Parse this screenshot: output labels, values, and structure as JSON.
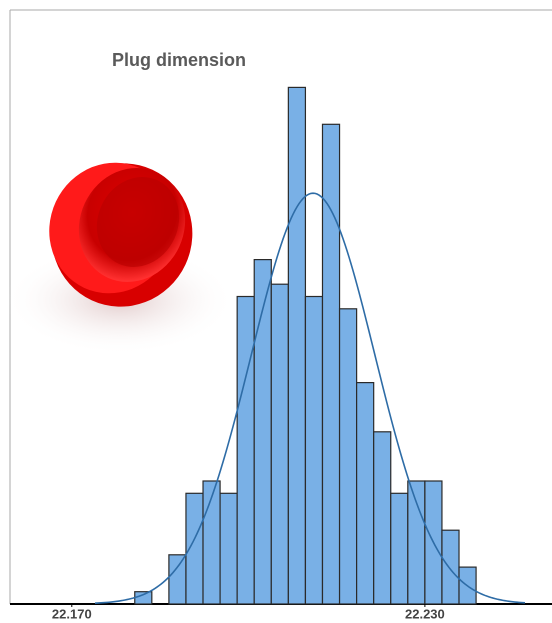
{
  "chart_data": {
    "type": "histogram",
    "title": "Plug dimension",
    "bins": [
      22.1807,
      22.1836,
      22.1865,
      22.1894,
      22.1923,
      22.1952,
      22.1981,
      22.201,
      22.2039,
      22.2068,
      22.2097,
      22.2126,
      22.2155,
      22.2184,
      22.2213,
      22.2242,
      22.2271,
      22.23,
      22.2329,
      22.2358,
      22.2387
    ],
    "counts": [
      1,
      0,
      4,
      9,
      10,
      9,
      25,
      28,
      26,
      42,
      25,
      39,
      24,
      18,
      14,
      9,
      10,
      10,
      6,
      3
    ],
    "color": "#79b0e6",
    "fit": {
      "mean": 22.211,
      "sd": 0.0105,
      "peak": 33.4,
      "color": "#2e6ca6"
    },
    "xlim": [
      22.1595,
      22.2516
    ],
    "ylim": [
      0,
      48
    ],
    "xticks": [
      {
        "value": 22.17,
        "label": "22.170"
      },
      {
        "value": 22.23,
        "label": "22.230"
      }
    ]
  }
}
